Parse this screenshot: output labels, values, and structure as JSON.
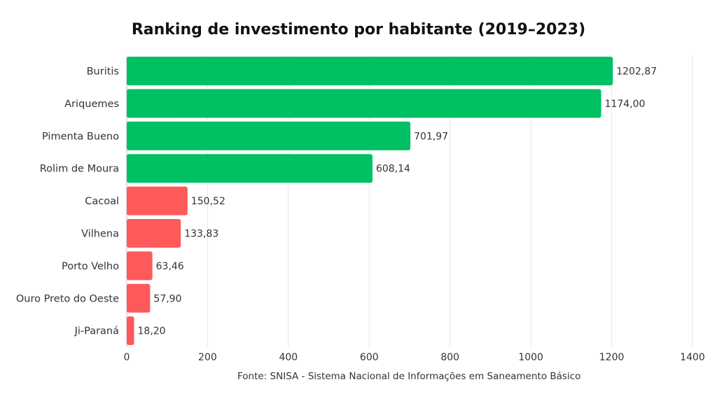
{
  "chart_data": {
    "type": "bar",
    "orientation": "horizontal",
    "title": "Ranking de investimento por habitante (2019–2023)",
    "source": "Fonte: SNISA - Sistema Nacional de Informações em Saneamento Básico",
    "categories": [
      "Buritis",
      "Ariquemes",
      "Pimenta Bueno",
      "Rolim de Moura",
      "Cacoal",
      "Vilhena",
      "Porto Velho",
      "Ouro Preto do Oeste",
      "Ji-Paraná"
    ],
    "values": [
      1202.87,
      1174.0,
      701.97,
      608.14,
      150.52,
      133.83,
      63.46,
      57.9,
      18.2
    ],
    "value_labels": [
      "1202,87",
      "1174,00",
      "701,97",
      "608,14",
      "150,52",
      "133,83",
      "63,46",
      "57,90",
      "18,20"
    ],
    "bar_colors": [
      "#00c064",
      "#00c064",
      "#00c064",
      "#00c064",
      "#ff5a5a",
      "#ff5a5a",
      "#ff5a5a",
      "#ff5a5a",
      "#ff5a5a"
    ],
    "xlim": [
      0,
      1400
    ],
    "xticks": [
      0,
      200,
      400,
      600,
      800,
      1000,
      1200,
      1400
    ],
    "xlabel": "",
    "ylabel": "",
    "grid": "vertical",
    "legend": "none"
  }
}
